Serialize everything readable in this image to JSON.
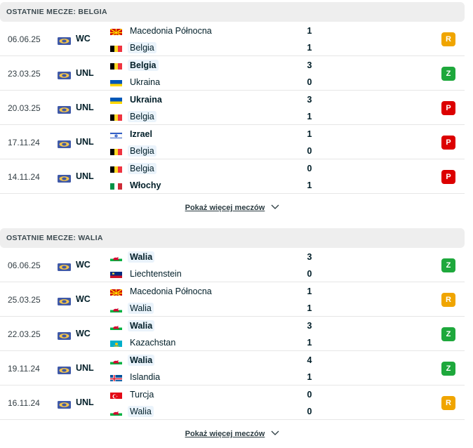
{
  "colors": {
    "R": "#f0a500",
    "Z": "#1ea83c",
    "P": "#dc0000",
    "header_bg": "#eeeeee",
    "highlight": "#eaf3fb"
  },
  "sections": [
    {
      "title": "OSTATNIE MECZE: BELGIA",
      "more_label": "Pokaż więcej meczów",
      "matches": [
        {
          "date": "06.06.25",
          "competition": "WC",
          "home": "Macedonia Północna",
          "home_flag": "north-macedonia",
          "away": "Belgia",
          "away_flag": "belgium",
          "home_score": "1",
          "away_score": "1",
          "result": "R",
          "highlight": "away",
          "winner": "none"
        },
        {
          "date": "23.03.25",
          "competition": "UNL",
          "home": "Belgia",
          "home_flag": "belgium",
          "away": "Ukraina",
          "away_flag": "ukraine",
          "home_score": "3",
          "away_score": "0",
          "result": "Z",
          "highlight": "home",
          "winner": "home"
        },
        {
          "date": "20.03.25",
          "competition": "UNL",
          "home": "Ukraina",
          "home_flag": "ukraine",
          "away": "Belgia",
          "away_flag": "belgium",
          "home_score": "3",
          "away_score": "1",
          "result": "P",
          "highlight": "away",
          "winner": "home"
        },
        {
          "date": "17.11.24",
          "competition": "UNL",
          "home": "Izrael",
          "home_flag": "israel",
          "away": "Belgia",
          "away_flag": "belgium",
          "home_score": "1",
          "away_score": "0",
          "result": "P",
          "highlight": "away",
          "winner": "home"
        },
        {
          "date": "14.11.24",
          "competition": "UNL",
          "home": "Belgia",
          "home_flag": "belgium",
          "away": "Włochy",
          "away_flag": "italy",
          "home_score": "0",
          "away_score": "1",
          "result": "P",
          "highlight": "home",
          "winner": "away"
        }
      ]
    },
    {
      "title": "OSTATNIE MECZE: WALIA",
      "more_label": "Pokaż więcej meczów",
      "matches": [
        {
          "date": "06.06.25",
          "competition": "WC",
          "home": "Walia",
          "home_flag": "wales",
          "away": "Liechtenstein",
          "away_flag": "liechtenstein",
          "home_score": "3",
          "away_score": "0",
          "result": "Z",
          "highlight": "home",
          "winner": "home"
        },
        {
          "date": "25.03.25",
          "competition": "WC",
          "home": "Macedonia Północna",
          "home_flag": "north-macedonia",
          "away": "Walia",
          "away_flag": "wales",
          "home_score": "1",
          "away_score": "1",
          "result": "R",
          "highlight": "away",
          "winner": "none"
        },
        {
          "date": "22.03.25",
          "competition": "WC",
          "home": "Walia",
          "home_flag": "wales",
          "away": "Kazachstan",
          "away_flag": "kazakhstan",
          "home_score": "3",
          "away_score": "1",
          "result": "Z",
          "highlight": "home",
          "winner": "home"
        },
        {
          "date": "19.11.24",
          "competition": "UNL",
          "home": "Walia",
          "home_flag": "wales",
          "away": "Islandia",
          "away_flag": "iceland",
          "home_score": "4",
          "away_score": "1",
          "result": "Z",
          "highlight": "home",
          "winner": "home"
        },
        {
          "date": "16.11.24",
          "competition": "UNL",
          "home": "Turcja",
          "home_flag": "turkey",
          "away": "Walia",
          "away_flag": "wales",
          "home_score": "0",
          "away_score": "0",
          "result": "R",
          "highlight": "away",
          "winner": "none"
        }
      ]
    }
  ]
}
